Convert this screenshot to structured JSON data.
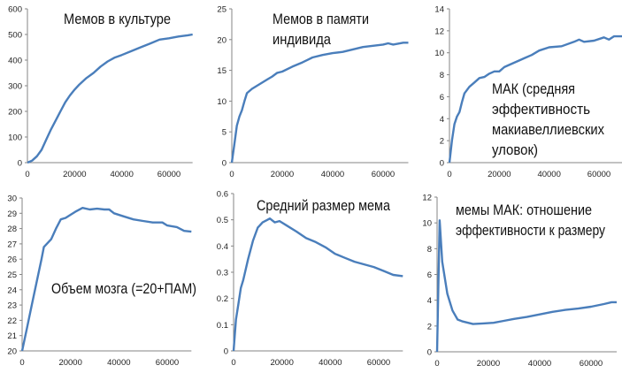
{
  "chart_data": [
    {
      "type": "line",
      "title": [
        "Мемов в культуре"
      ],
      "xlim": [
        0,
        70000
      ],
      "ylim": [
        0,
        600
      ],
      "xticks": [
        "0",
        "20000",
        "40000",
        "60000"
      ],
      "yticks": [
        "0",
        "100",
        "200",
        "300",
        "400",
        "500",
        "600"
      ],
      "color": "#4a7ebb",
      "x": [
        0,
        2000,
        4000,
        6000,
        8000,
        10000,
        12000,
        14000,
        16000,
        18000,
        20000,
        22000,
        25000,
        28000,
        31000,
        34000,
        37000,
        40000,
        44000,
        48000,
        52000,
        56000,
        60000,
        64000,
        68000,
        70000
      ],
      "y": [
        0,
        8,
        25,
        50,
        90,
        130,
        165,
        200,
        235,
        262,
        285,
        305,
        330,
        350,
        375,
        395,
        410,
        420,
        435,
        450,
        465,
        480,
        485,
        492,
        497,
        500
      ]
    },
    {
      "type": "line",
      "title": [
        "Мемов в памяти",
        "индивида"
      ],
      "xlim": [
        0,
        70000
      ],
      "ylim": [
        0,
        25
      ],
      "xticks": [
        "0",
        "20000",
        "40000",
        "60000"
      ],
      "yticks": [
        "0",
        "5",
        "10",
        "15",
        "20",
        "25"
      ],
      "color": "#4a7ebb",
      "x": [
        0,
        1000,
        2000,
        3000,
        4000,
        5000,
        6000,
        8000,
        10000,
        12000,
        14000,
        16000,
        18000,
        20000,
        24000,
        28000,
        30000,
        32000,
        36000,
        40000,
        44000,
        48000,
        52000,
        56000,
        60000,
        62000,
        64000,
        68000,
        70000
      ],
      "y": [
        0,
        3,
        6,
        7.5,
        8.5,
        10,
        11.3,
        12,
        12.5,
        13,
        13.5,
        14,
        14.6,
        14.8,
        15.6,
        16.3,
        16.7,
        17.1,
        17.5,
        17.8,
        18,
        18.4,
        18.8,
        19,
        19.2,
        19.4,
        19.2,
        19.5,
        19.5
      ]
    },
    {
      "type": "line",
      "title": [
        "МАК (средняя",
        "эффективность",
        "макиавеллиевских",
        "уловок)"
      ],
      "xlim": [
        0,
        70000
      ],
      "ylim": [
        0,
        14
      ],
      "xticks": [
        "0",
        "20000",
        "40000",
        "60000"
      ],
      "yticks": [
        "0",
        "2",
        "4",
        "6",
        "8",
        "10",
        "12",
        "14"
      ],
      "color": "#4a7ebb",
      "x": [
        0,
        1000,
        2000,
        3000,
        4000,
        5000,
        6000,
        8000,
        10000,
        12000,
        14000,
        16000,
        18000,
        20000,
        22000,
        25000,
        28000,
        30000,
        33000,
        36000,
        40000,
        45000,
        50000,
        52000,
        54000,
        58000,
        62000,
        64000,
        66000,
        70000
      ],
      "y": [
        0,
        2,
        3.5,
        4.2,
        4.6,
        5.5,
        6.3,
        6.9,
        7.3,
        7.7,
        7.8,
        8.1,
        8.3,
        8.3,
        8.7,
        9,
        9.3,
        9.5,
        9.8,
        10.2,
        10.5,
        10.6,
        11,
        11.2,
        11,
        11.1,
        11.4,
        11.2,
        11.5,
        11.5
      ]
    },
    {
      "type": "line",
      "title": [
        "Объем мозга (=20+ПАМ)"
      ],
      "xlim": [
        0,
        70000
      ],
      "ylim": [
        20,
        30
      ],
      "xticks": [
        "0",
        "20000",
        "40000",
        "60000"
      ],
      "yticks": [
        "20",
        "21",
        "22",
        "23",
        "24",
        "25",
        "26",
        "27",
        "28",
        "29",
        "30"
      ],
      "color": "#4a7ebb",
      "x": [
        0,
        2000,
        4000,
        6000,
        8000,
        9000,
        12000,
        14000,
        16000,
        18000,
        20000,
        22000,
        25000,
        28000,
        31000,
        34000,
        36000,
        38000,
        42000,
        46000,
        50000,
        54000,
        58000,
        60000,
        64000,
        67000,
        70000
      ],
      "y": [
        20,
        21.5,
        23,
        24.5,
        26,
        26.8,
        27.3,
        28,
        28.6,
        28.7,
        28.9,
        29.1,
        29.35,
        29.25,
        29.3,
        29.25,
        29.25,
        29,
        28.8,
        28.6,
        28.5,
        28.4,
        28.4,
        28.2,
        28.1,
        27.85,
        27.8
      ]
    },
    {
      "type": "line",
      "title": [
        "Средний размер мема"
      ],
      "xlim": [
        0,
        70000
      ],
      "ylim": [
        0,
        0.6
      ],
      "xticks": [
        "0",
        "20000",
        "40000",
        "60000"
      ],
      "yticks": [
        "0",
        "0.1",
        "0.2",
        "0.3",
        "0.4",
        "0.5",
        "0.6"
      ],
      "color": "#4a7ebb",
      "x": [
        0,
        1000,
        2000,
        3000,
        4000,
        6000,
        8000,
        10000,
        12000,
        14000,
        15000,
        17000,
        19000,
        22000,
        26000,
        30000,
        34000,
        38000,
        42000,
        46000,
        50000,
        54000,
        58000,
        62000,
        66000,
        70000
      ],
      "y": [
        0,
        0.12,
        0.18,
        0.24,
        0.27,
        0.35,
        0.42,
        0.47,
        0.49,
        0.5,
        0.505,
        0.49,
        0.495,
        0.478,
        0.455,
        0.43,
        0.415,
        0.395,
        0.37,
        0.355,
        0.34,
        0.33,
        0.32,
        0.305,
        0.29,
        0.285
      ]
    },
    {
      "type": "line",
      "title": [
        "мемы МАК: отношение",
        "эффективности к размеру"
      ],
      "xlim": [
        0,
        70000
      ],
      "ylim": [
        0,
        12
      ],
      "xticks": [
        "0",
        "20000",
        "40000",
        "60000"
      ],
      "yticks": [
        "0",
        "2",
        "4",
        "6",
        "8",
        "10",
        "12"
      ],
      "color": "#4a7ebb",
      "x": [
        0,
        1000,
        2000,
        4000,
        6000,
        8000,
        10000,
        14000,
        18000,
        22000,
        26000,
        30000,
        35000,
        40000,
        45000,
        50000,
        55000,
        60000,
        65000,
        68000,
        70000
      ],
      "y": [
        0,
        10.2,
        7,
        4.5,
        3.2,
        2.5,
        2.35,
        2.15,
        2.2,
        2.25,
        2.4,
        2.55,
        2.7,
        2.9,
        3.1,
        3.25,
        3.35,
        3.5,
        3.7,
        3.85,
        3.85
      ]
    }
  ]
}
